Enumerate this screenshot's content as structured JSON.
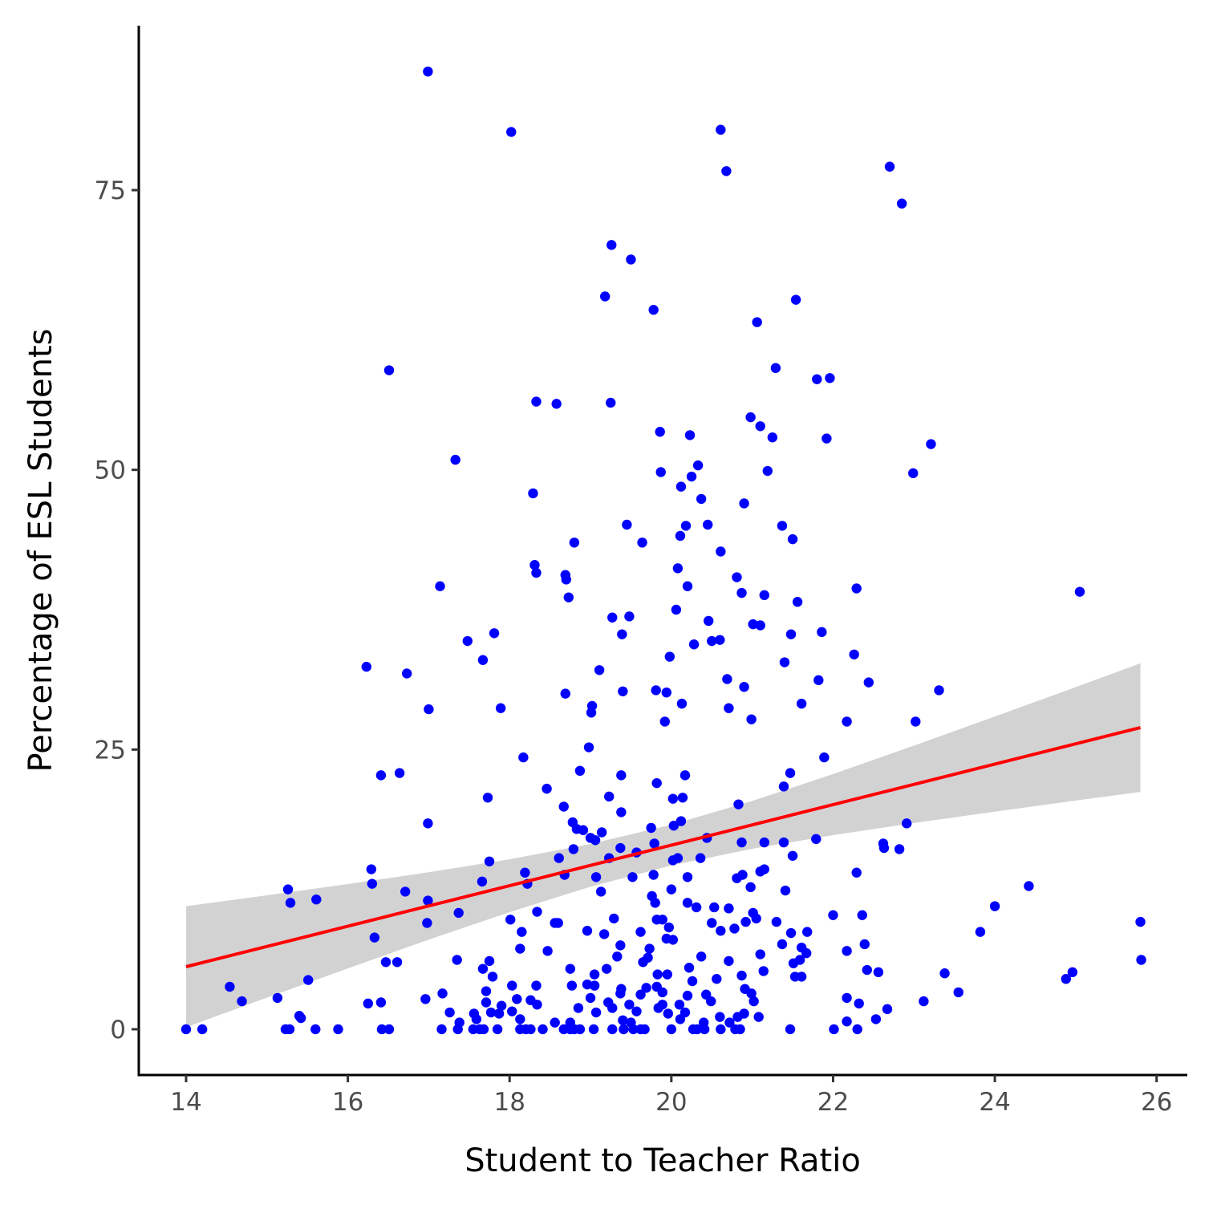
{
  "chart_data": {
    "type": "scatter",
    "xlabel": "Student to Teacher Ratio",
    "ylabel": "Percentage of ESL Students",
    "xlim": [
      13.415,
      26.38
    ],
    "ylim": [
      -4.09,
      89.7
    ],
    "xticks": [
      14,
      16,
      18,
      20,
      22,
      24,
      26
    ],
    "yticks": [
      0,
      25,
      50,
      75
    ],
    "grid": false,
    "series": [
      {
        "color": "#0000ff",
        "x": [
          16.99,
          18.02,
          20.61,
          20.68,
          22.7,
          22.85,
          19.26,
          19.5,
          19.18,
          19.78,
          21.54,
          21.06,
          16.51,
          21.29,
          21.8,
          21.96,
          18.33,
          18.58,
          19.25,
          20.98,
          21.1,
          19.86,
          20.23,
          21.25,
          21.92,
          23.21,
          17.33,
          20.33,
          19.87,
          21.19,
          20.25,
          22.99,
          20.12,
          18.29,
          20.37,
          20.9,
          19.45,
          20.45,
          20.18,
          21.37,
          20.11,
          21.5,
          18.8,
          19.64,
          20.61,
          18.31,
          18.33,
          20.08,
          18.69,
          18.7,
          20.81,
          17.14,
          20.2,
          20.87,
          21.15,
          22.29,
          25.05,
          18.73,
          21.56,
          20.06,
          19.27,
          19.48,
          20.46,
          21.01,
          21.1,
          17.81,
          19.39,
          21.48,
          21.86,
          17.48,
          20.6,
          20.5,
          20.28,
          22.26,
          19.98,
          17.67,
          21.4,
          16.23,
          16.73,
          19.11,
          20.69,
          21.82,
          22.44,
          20.9,
          19.81,
          19.94,
          18.69,
          19.4,
          23.31,
          20.13,
          21.61,
          19.02,
          17.0,
          17.89,
          20.71,
          19.01,
          20.99,
          19.92,
          22.17,
          23.02,
          18.98,
          18.17,
          21.89,
          18.87,
          19.38,
          20.17,
          21.47,
          16.41,
          16.64,
          19.82,
          21.39,
          18.46,
          19.23,
          17.73,
          20.02,
          20.14,
          20.83,
          18.67,
          19.38,
          20.12,
          18.78,
          16.99,
          19.75,
          22.91,
          20.03,
          18.83,
          18.91,
          19.14,
          19.0,
          19.06,
          19.79,
          20.87,
          21.15,
          21.39,
          20.44,
          21.79,
          22.62,
          22.63,
          22.82,
          18.79,
          19.37,
          19.57,
          21.5,
          20.08,
          20.02,
          20.36,
          19.23,
          18.61,
          17.75,
          16.29,
          21.15,
          21.1,
          18.19,
          22.29,
          18.68,
          19.07,
          19.52,
          19.78,
          20.88,
          20.81,
          20.2,
          16.3,
          18.22,
          17.66,
          20.98,
          15.26,
          16.71,
          19.13,
          20.0,
          21.41,
          24.42,
          19.76,
          15.61,
          15.29,
          16.99,
          19.8,
          20.2,
          20.31,
          20.53,
          20.71,
          24.0,
          17.37,
          18.34,
          21.01,
          22.0,
          22.36,
          19.82,
          19.89,
          19.29,
          18.01,
          21.05,
          16.98,
          18.56,
          18.6,
          20.5,
          20.92,
          21.3,
          25.8,
          19.97,
          20.61,
          20.78,
          18.96,
          19.62,
          19.17,
          21.68,
          21.48,
          18.15,
          23.82,
          16.33,
          19.94,
          20.02,
          19.37,
          21.37,
          18.13,
          21.61,
          22.39,
          21.67,
          19.73,
          18.47,
          22.17,
          19.33,
          20.37,
          21.1,
          16.47,
          16.61,
          17.35,
          17.75,
          19.65,
          20.71,
          25.81,
          21.51,
          21.59,
          19.71,
          17.67,
          18.75,
          19.2,
          20.22,
          22.42,
          22.56,
          23.38,
          24.96,
          24.88,
          19.05,
          19.83,
          19.95,
          21.14,
          20.87,
          15.51,
          17.79,
          20.56,
          20.26,
          21.53,
          21.61,
          14.54,
          18.03,
          18.33,
          18.77,
          18.96,
          19.05,
          19.69,
          19.82,
          20.91,
          23.55,
          17.17,
          17.71,
          19.38,
          19.37,
          19.62,
          20.43,
          19.89,
          20.99,
          14.69,
          15.13,
          16.96,
          18.09,
          18.26,
          19.0,
          20.2,
          20.49,
          21.02,
          23.12,
          22.17,
          16.25,
          16.41,
          18.34,
          17.71,
          19.22,
          19.89,
          19.48,
          22.32,
          17.9,
          18.85,
          19.27,
          19.84,
          20.1,
          22.67,
          17.26,
          17.56,
          17.77,
          17.87,
          18.03,
          19.07,
          19.57,
          19.96,
          20.17,
          20.9,
          21.08,
          15.4,
          15.42,
          20.6,
          20.82,
          18.13,
          17.59,
          22.53,
          22.17,
          20.11,
          19.4,
          18.75,
          17.38,
          18.56,
          19.5,
          20.4,
          20.72,
          14.0,
          14.2,
          15.23,
          15.28,
          15.6,
          15.88,
          16.42,
          16.51,
          17.16,
          17.36,
          17.55,
          17.63,
          17.68,
          17.85,
          18.13,
          18.2,
          18.26,
          18.41,
          18.67,
          18.75,
          18.8,
          18.87,
          19.04,
          19.27,
          19.41,
          19.53,
          19.62,
          19.67,
          20.0,
          20.27,
          20.32,
          20.41,
          20.61,
          20.79,
          20.85,
          21.47,
          22.01,
          22.3
        ],
        "values": [
          85.6,
          80.2,
          80.4,
          76.7,
          77.1,
          73.8,
          70.1,
          68.8,
          65.5,
          64.3,
          65.2,
          63.2,
          58.9,
          59.1,
          58.1,
          58.2,
          56.1,
          55.9,
          56.0,
          54.7,
          53.9,
          53.4,
          53.1,
          52.9,
          52.8,
          52.3,
          50.9,
          50.4,
          49.8,
          49.9,
          49.4,
          49.7,
          48.5,
          47.9,
          47.4,
          47.0,
          45.1,
          45.1,
          45.0,
          45.0,
          44.1,
          43.8,
          43.5,
          43.5,
          42.7,
          41.5,
          40.8,
          41.2,
          40.6,
          40.2,
          40.4,
          39.6,
          39.6,
          39.0,
          38.8,
          39.4,
          39.1,
          38.6,
          38.2,
          37.5,
          36.8,
          36.9,
          36.5,
          36.2,
          36.1,
          35.4,
          35.3,
          35.3,
          35.5,
          34.7,
          34.8,
          34.7,
          34.4,
          33.5,
          33.3,
          33.0,
          32.8,
          32.4,
          31.8,
          32.1,
          31.3,
          31.2,
          31.0,
          30.6,
          30.3,
          30.1,
          30.0,
          30.2,
          30.3,
          29.1,
          29.1,
          28.9,
          28.6,
          28.7,
          28.7,
          28.3,
          27.7,
          27.5,
          27.5,
          27.5,
          25.2,
          24.3,
          24.3,
          23.1,
          22.7,
          22.7,
          22.9,
          22.7,
          22.9,
          22.0,
          21.7,
          21.5,
          20.8,
          20.7,
          20.6,
          20.7,
          20.1,
          19.9,
          19.4,
          18.6,
          18.5,
          18.4,
          18.0,
          18.4,
          18.2,
          17.9,
          17.8,
          17.6,
          17.1,
          16.9,
          16.6,
          16.7,
          16.7,
          16.7,
          17.1,
          17.0,
          16.6,
          16.2,
          16.1,
          16.1,
          16.2,
          15.8,
          15.5,
          15.3,
          15.1,
          15.3,
          15.3,
          15.3,
          15.0,
          14.3,
          14.3,
          14.1,
          14.0,
          14.0,
          13.8,
          13.6,
          13.6,
          13.8,
          13.8,
          13.5,
          13.6,
          13.0,
          13.0,
          13.2,
          12.7,
          12.5,
          12.3,
          12.3,
          12.5,
          12.4,
          12.8,
          11.9,
          11.6,
          11.3,
          11.5,
          11.3,
          11.3,
          10.9,
          10.9,
          10.8,
          11.0,
          10.4,
          10.5,
          10.4,
          10.2,
          10.2,
          9.8,
          9.8,
          9.9,
          9.8,
          9.9,
          9.5,
          9.5,
          9.5,
          9.5,
          9.6,
          9.6,
          9.6,
          9.1,
          8.8,
          9.0,
          8.8,
          8.7,
          8.5,
          8.7,
          8.6,
          8.7,
          8.7,
          8.2,
          8.1,
          8.0,
          7.5,
          7.6,
          7.2,
          7.3,
          7.6,
          6.8,
          7.2,
          7.0,
          7.0,
          6.5,
          6.5,
          6.7,
          6.0,
          6.0,
          6.2,
          6.1,
          6.0,
          6.1,
          6.2,
          5.9,
          6.2,
          6.4,
          5.4,
          5.4,
          5.4,
          5.5,
          5.3,
          5.1,
          5.0,
          5.1,
          4.5,
          4.9,
          4.9,
          4.9,
          5.2,
          4.8,
          4.4,
          4.7,
          4.5,
          4.3,
          4.7,
          4.7,
          3.8,
          3.9,
          3.9,
          3.9,
          4.0,
          3.9,
          3.7,
          3.8,
          3.6,
          3.3,
          3.2,
          3.4,
          3.6,
          3.2,
          3.1,
          3.1,
          3.3,
          3.2,
          2.5,
          2.8,
          2.7,
          2.7,
          2.6,
          2.8,
          3.0,
          2.5,
          2.5,
          2.5,
          2.8,
          2.3,
          2.4,
          2.2,
          2.4,
          2.4,
          2.2,
          2.2,
          2.3,
          2.1,
          1.9,
          1.9,
          1.9,
          2.2,
          1.8,
          1.5,
          1.4,
          1.5,
          1.4,
          1.6,
          1.5,
          1.6,
          1.4,
          1.5,
          1.4,
          1.1,
          1.2,
          1.0,
          1.1,
          1.1,
          0.9,
          0.9,
          0.9,
          0.7,
          0.9,
          0.8,
          0.6,
          0.6,
          0.6,
          0.6,
          0.6,
          0.6,
          0,
          0,
          0,
          0,
          0,
          0,
          0,
          0,
          0,
          0,
          0,
          0,
          0,
          0,
          0,
          0,
          0,
          0,
          0,
          0,
          0,
          0,
          0,
          0,
          0,
          0,
          0,
          0,
          0,
          0,
          0,
          0,
          0,
          0,
          0,
          0,
          0,
          0
        ]
      }
    ],
    "fit": {
      "color": "#ff0000",
      "x": [
        14,
        25.8
      ],
      "values": [
        5.59,
        26.96
      ]
    },
    "band": {
      "color": "#d0d0d0",
      "x": [
        14,
        15,
        16,
        17,
        18,
        19,
        20,
        21,
        22,
        23,
        24,
        25,
        25.8
      ],
      "lower": [
        0.18,
        2.83,
        5.44,
        8.01,
        10.47,
        12.74,
        14.64,
        16.13,
        17.35,
        18.43,
        19.45,
        20.44,
        21.21
      ],
      "upper": [
        11.0,
        11.97,
        12.98,
        14.03,
        15.19,
        16.56,
        18.28,
        20.41,
        22.81,
        25.35,
        27.95,
        30.58,
        32.71
      ]
    }
  }
}
